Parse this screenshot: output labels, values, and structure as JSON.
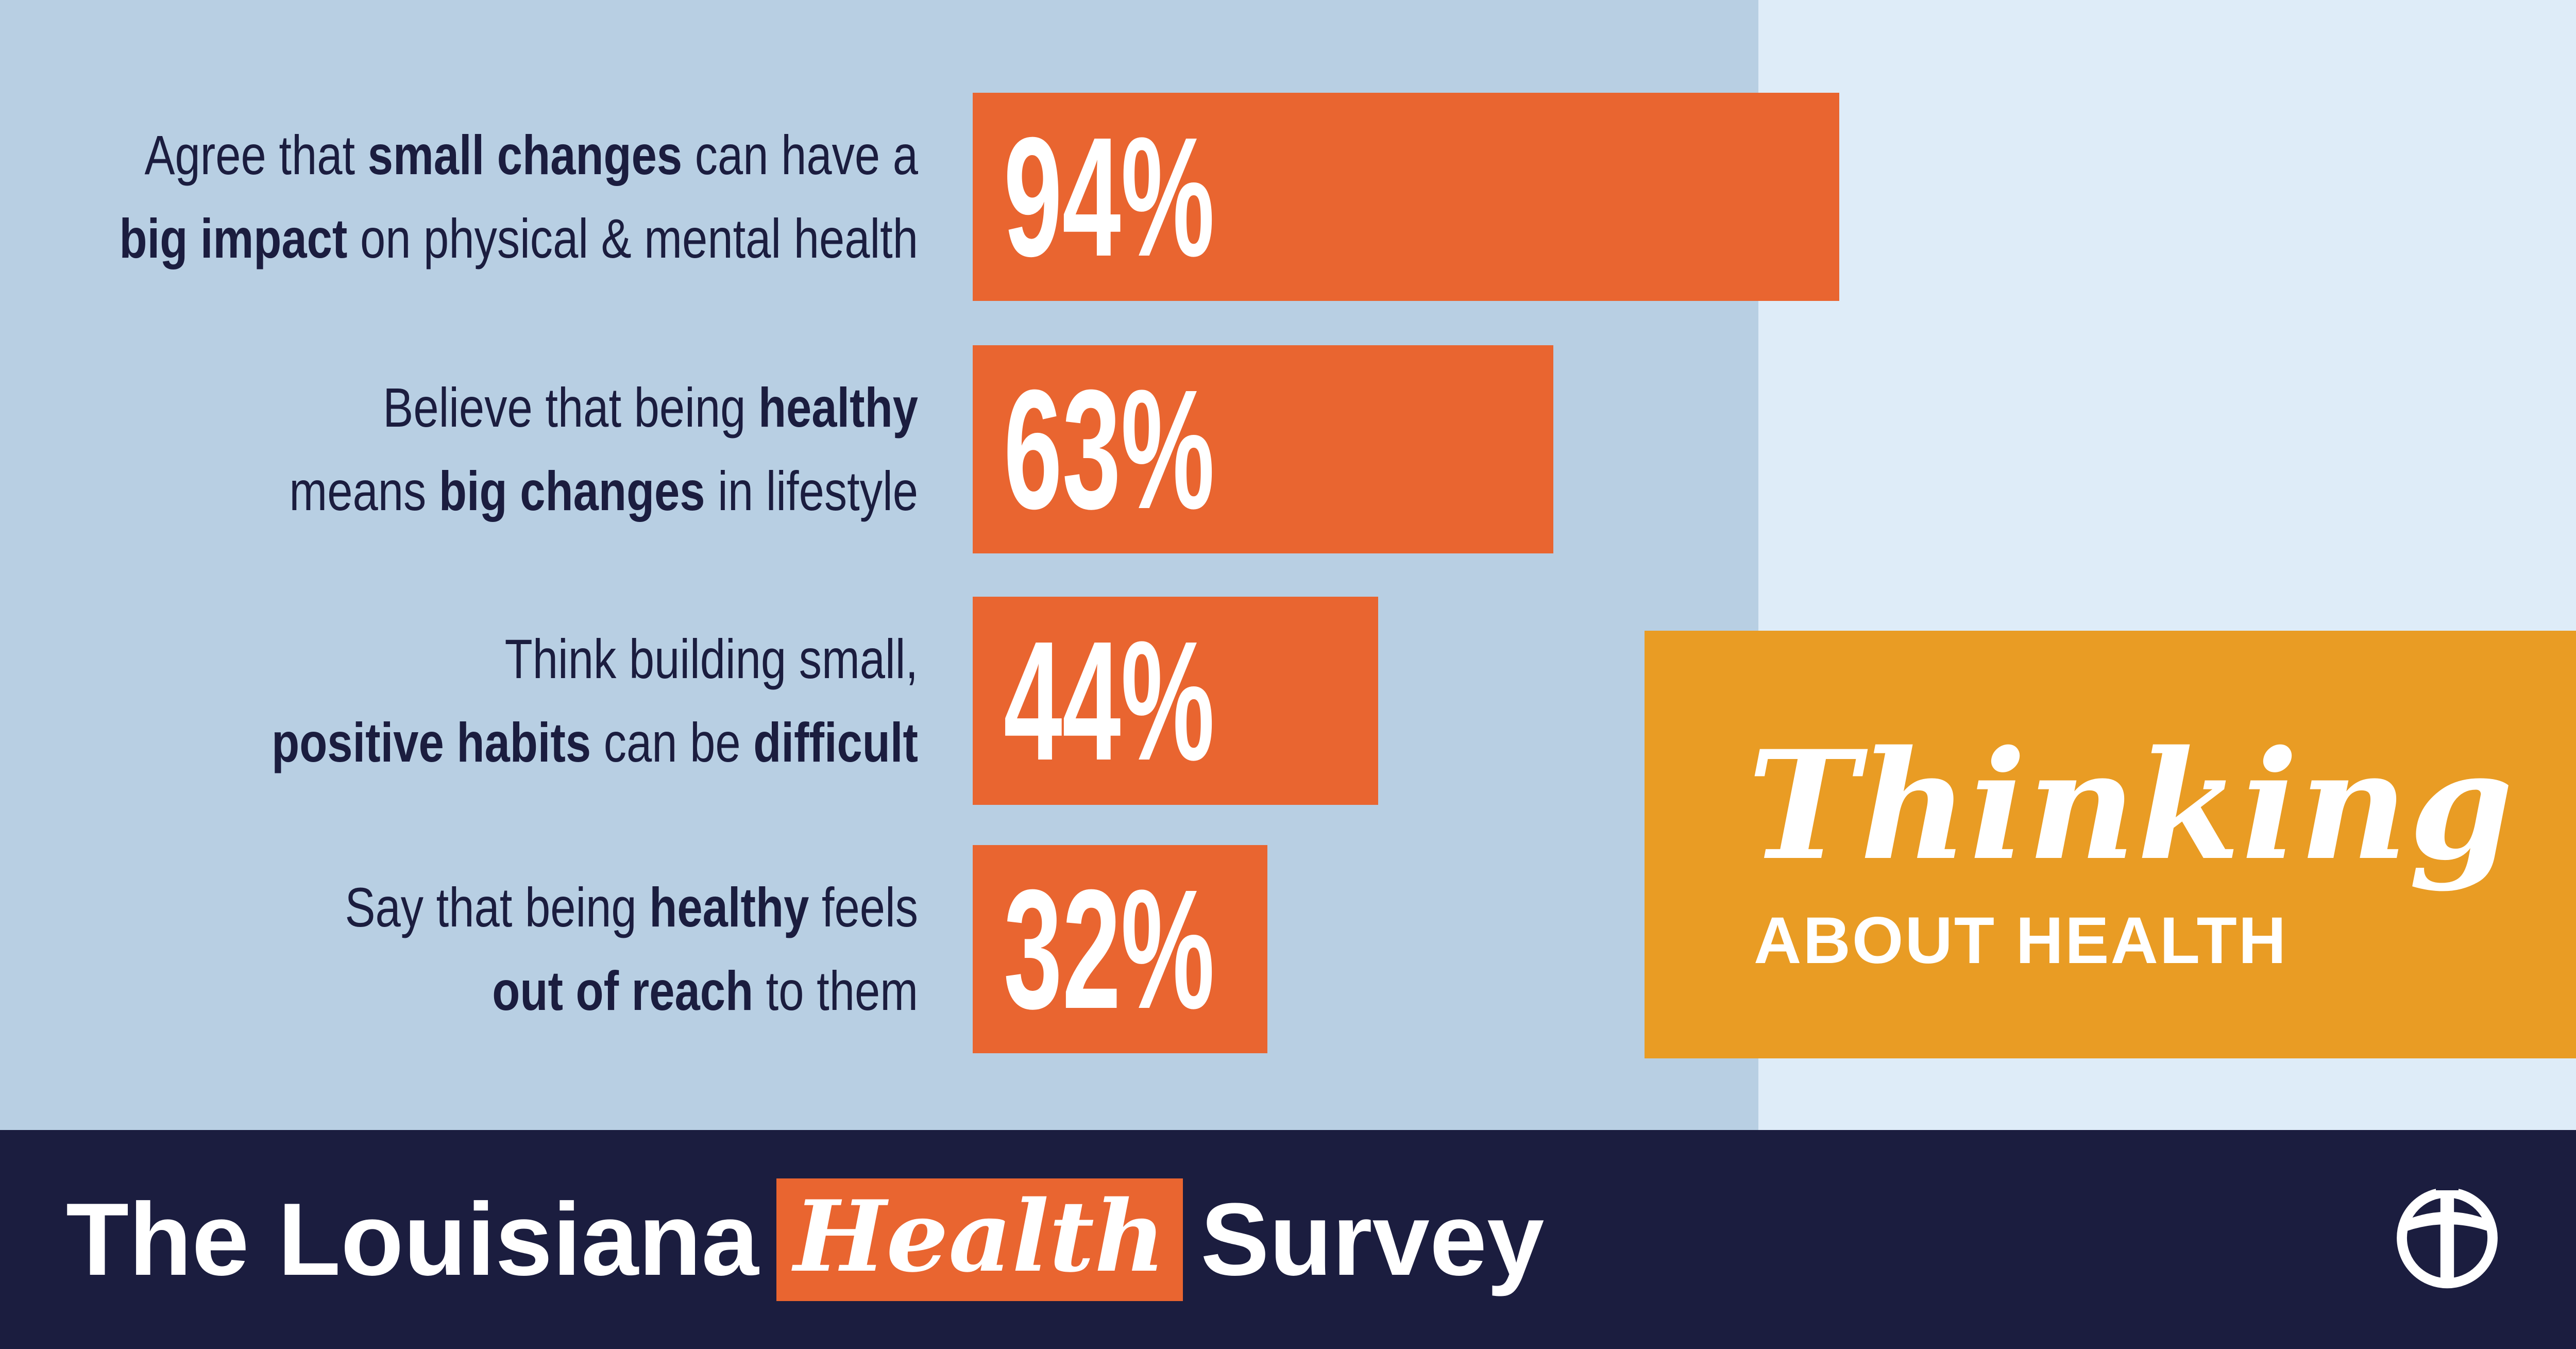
{
  "chart_data": {
    "type": "bar",
    "orientation": "horizontal",
    "xlim": [
      0,
      100
    ],
    "categories": [
      "Agree that small changes can have a big impact on physical & mental health",
      "Believe that being healthy means big changes in lifestyle",
      "Think building small, positive habits can be difficult",
      "Say that being healthy feels out of reach to them"
    ],
    "values": [
      94,
      63,
      44,
      32
    ],
    "value_labels": [
      "94%",
      "63%",
      "44%",
      "32%"
    ],
    "bar_color": "#e96530"
  },
  "labels": [
    {
      "line1": [
        {
          "text": "Agree that ",
          "bold": false
        },
        {
          "text": "small changes",
          "bold": true
        },
        {
          "text": " can have a",
          "bold": false
        }
      ],
      "line2": [
        {
          "text": "big impact",
          "bold": true
        },
        {
          "text": " on physical & mental health",
          "bold": false
        }
      ]
    },
    {
      "line1": [
        {
          "text": "Believe that being ",
          "bold": false
        },
        {
          "text": "healthy",
          "bold": true
        }
      ],
      "line2": [
        {
          "text": "means ",
          "bold": false
        },
        {
          "text": "big changes",
          "bold": true
        },
        {
          "text": " in lifestyle",
          "bold": false
        }
      ]
    },
    {
      "line1": [
        {
          "text": "Think building small,",
          "bold": false
        }
      ],
      "line2": [
        {
          "text": "positive habits",
          "bold": true
        },
        {
          "text": " can be ",
          "bold": false
        },
        {
          "text": "difficult",
          "bold": true
        }
      ]
    },
    {
      "line1": [
        {
          "text": "Say that being ",
          "bold": false
        },
        {
          "text": "healthy",
          "bold": true
        },
        {
          "text": " feels",
          "bold": false
        }
      ],
      "line2": [
        {
          "text": "out of reach",
          "bold": true
        },
        {
          "text": " to them",
          "bold": false
        }
      ]
    }
  ],
  "badge": {
    "script_text": "Thinking",
    "sub_text": "ABOUT HEALTH"
  },
  "footer": {
    "brand_before": "The Louisiana",
    "brand_highlight": "Health",
    "brand_after": "Survey",
    "logo_icon": "cross-cap-icon"
  },
  "colors": {
    "panel_left": "#b8cfe3",
    "panel_right": "#deecf8",
    "navy": "#1b1d3f",
    "orange": "#e96530",
    "badge_gold": "#e99c24"
  }
}
